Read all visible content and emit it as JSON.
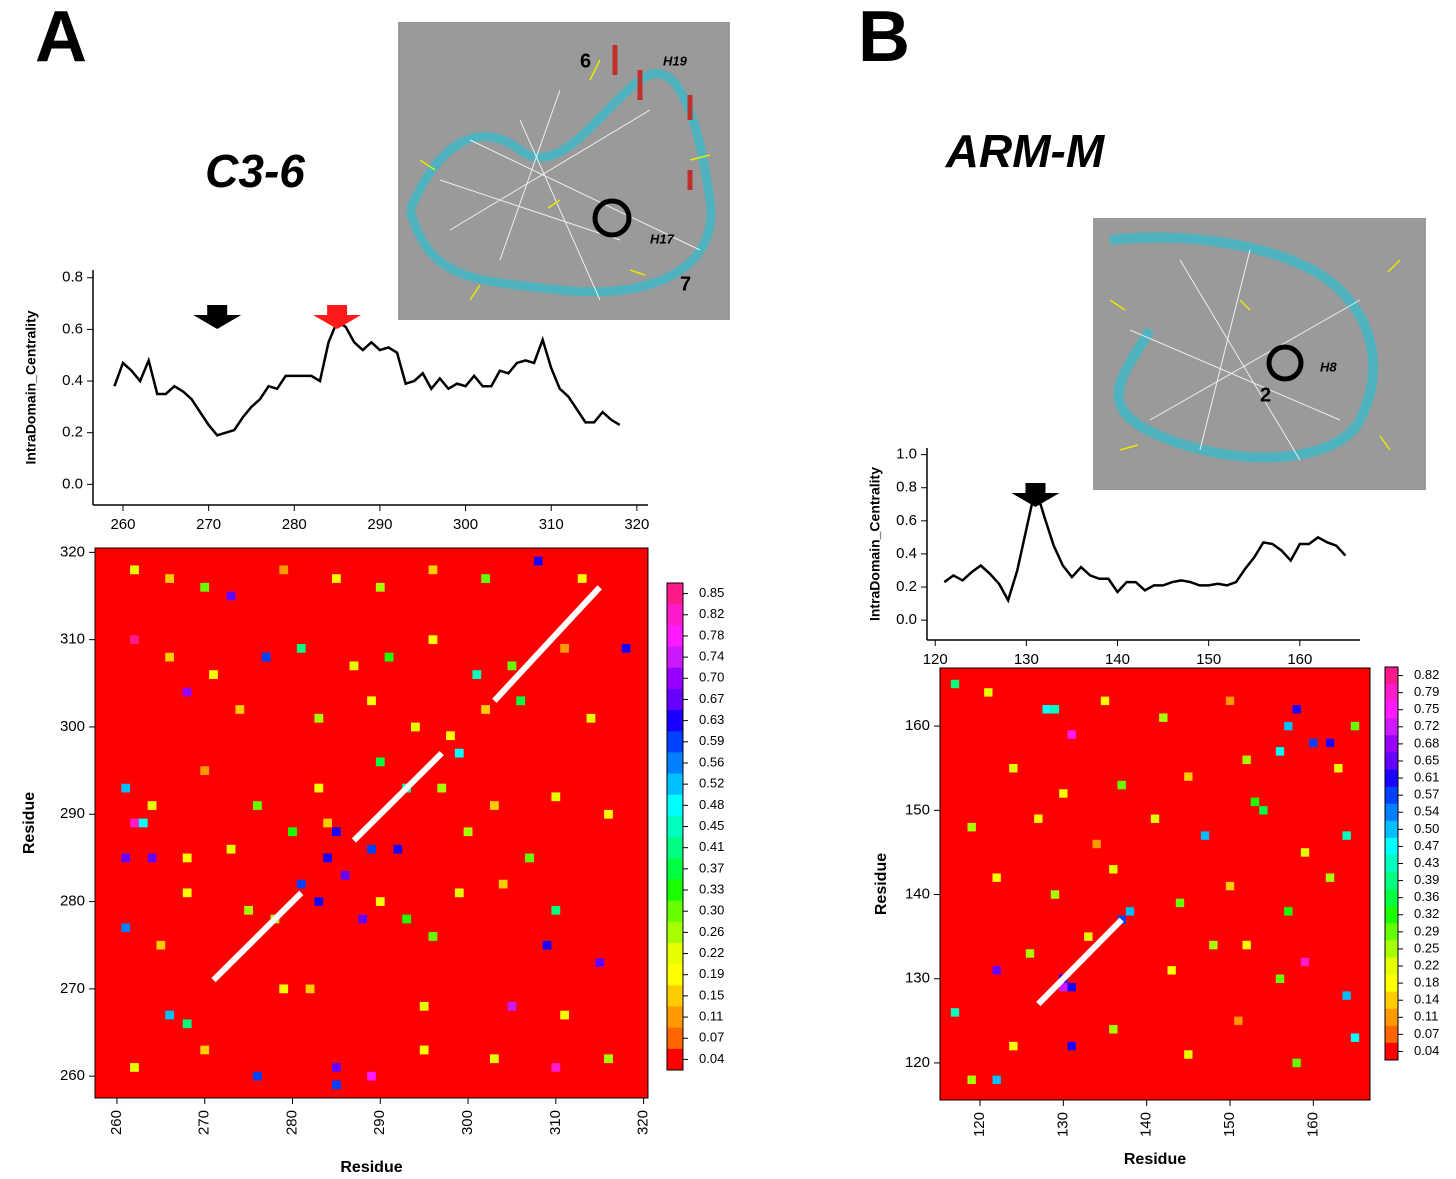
{
  "panels": [
    {
      "label": "A",
      "title": "C3-6",
      "inset_labels": [
        "6",
        "H19",
        "H17",
        "7"
      ]
    },
    {
      "label": "B",
      "title": "ARM-M",
      "inset_labels": [
        "H8",
        "2"
      ]
    }
  ],
  "chart_data": [
    {
      "type": "line",
      "x_label": "",
      "y_label": "IntraDomain_Centrality",
      "color": "#000000",
      "x": [
        259,
        260,
        261,
        262,
        263,
        264,
        265,
        266,
        267,
        268,
        269,
        270,
        271,
        272,
        273,
        274,
        275,
        276,
        277,
        278,
        279,
        280,
        281,
        282,
        283,
        284,
        285,
        286,
        287,
        288,
        289,
        290,
        291,
        292,
        293,
        294,
        295,
        296,
        297,
        298,
        299,
        300,
        301,
        302,
        303,
        304,
        305,
        306,
        307,
        308,
        309,
        310,
        311,
        312,
        313,
        314,
        315,
        316,
        317,
        318
      ],
      "values": [
        0.38,
        0.47,
        0.44,
        0.4,
        0.48,
        0.35,
        0.35,
        0.38,
        0.36,
        0.33,
        0.28,
        0.23,
        0.19,
        0.2,
        0.21,
        0.26,
        0.3,
        0.33,
        0.38,
        0.37,
        0.42,
        0.42,
        0.42,
        0.42,
        0.4,
        0.55,
        0.63,
        0.61,
        0.55,
        0.52,
        0.55,
        0.52,
        0.53,
        0.51,
        0.39,
        0.4,
        0.43,
        0.37,
        0.41,
        0.37,
        0.39,
        0.38,
        0.42,
        0.38,
        0.38,
        0.44,
        0.43,
        0.47,
        0.48,
        0.47,
        0.56,
        0.45,
        0.37,
        0.34,
        0.29,
        0.24,
        0.24,
        0.28,
        0.25,
        0.23
      ],
      "xlim": [
        256.5,
        321.3
      ],
      "xticks": [
        260,
        270,
        280,
        290,
        300,
        310,
        320
      ],
      "ylim": [
        -0.08,
        0.83
      ],
      "yticks": [
        {
          "value": 0,
          "label": "0.0"
        },
        0.2,
        0.4,
        0.6,
        0.8
      ],
      "arrows": [
        {
          "x": 271,
          "color": "#000000"
        },
        {
          "x": 285,
          "color": "#ff1a1a"
        }
      ]
    },
    {
      "type": "heatmap",
      "x_label": "Residue",
      "y_label": "Residue",
      "xlim": [
        257.5,
        320.5
      ],
      "ylim": [
        257.5,
        320.5
      ],
      "xticks": [
        260,
        270,
        280,
        290,
        300,
        310,
        320
      ],
      "yticks": [
        260,
        270,
        280,
        290,
        300,
        310,
        320
      ],
      "cells": [
        [
          262,
          318,
          0.22
        ],
        [
          266,
          317,
          0.15
        ],
        [
          270,
          316,
          0.3
        ],
        [
          273,
          315,
          0.67
        ],
        [
          279,
          318,
          0.11
        ],
        [
          285,
          317,
          0.19
        ],
        [
          290,
          316,
          0.26
        ],
        [
          296,
          318,
          0.15
        ],
        [
          302,
          317,
          0.3
        ],
        [
          308,
          319,
          0.63
        ],
        [
          313,
          317,
          0.19
        ],
        [
          262,
          310,
          0.85
        ],
        [
          266,
          308,
          0.15
        ],
        [
          271,
          306,
          0.19
        ],
        [
          277,
          308,
          0.59
        ],
        [
          281,
          309,
          0.41
        ],
        [
          287,
          307,
          0.22
        ],
        [
          291,
          308,
          0.33
        ],
        [
          296,
          310,
          0.19
        ],
        [
          301,
          306,
          0.45
        ],
        [
          305,
          307,
          0.3
        ],
        [
          311,
          309,
          0.11
        ],
        [
          318,
          309,
          0.63
        ],
        [
          268,
          304,
          0.7
        ],
        [
          274,
          302,
          0.15
        ],
        [
          283,
          301,
          0.26
        ],
        [
          289,
          303,
          0.19
        ],
        [
          294,
          300,
          0.22
        ],
        [
          298,
          299,
          0.19
        ],
        [
          302,
          302,
          0.15
        ],
        [
          306,
          303,
          0.37
        ],
        [
          314,
          301,
          0.22
        ],
        [
          261,
          293,
          0.52
        ],
        [
          264,
          291,
          0.22
        ],
        [
          270,
          295,
          0.11
        ],
        [
          276,
          291,
          0.3
        ],
        [
          283,
          293,
          0.19
        ],
        [
          290,
          296,
          0.37
        ],
        [
          293,
          293,
          0.45
        ],
        [
          297,
          293,
          0.26
        ],
        [
          299,
          297,
          0.48
        ],
        [
          303,
          291,
          0.15
        ],
        [
          310,
          292,
          0.22
        ],
        [
          316,
          290,
          0.19
        ],
        [
          262,
          289,
          0.82
        ],
        [
          263,
          289,
          0.48
        ],
        [
          261,
          285,
          0.67
        ],
        [
          264,
          285,
          0.67
        ],
        [
          268,
          285,
          0.19
        ],
        [
          273,
          286,
          0.22
        ],
        [
          280,
          288,
          0.33
        ],
        [
          284,
          289,
          0.15
        ],
        [
          285,
          288,
          0.63
        ],
        [
          289,
          286,
          0.59
        ],
        [
          292,
          286,
          0.63
        ],
        [
          300,
          288,
          0.26
        ],
        [
          307,
          285,
          0.3
        ],
        [
          268,
          281,
          0.19
        ],
        [
          275,
          279,
          0.26
        ],
        [
          281,
          282,
          0.59
        ],
        [
          283,
          280,
          0.63
        ],
        [
          284,
          285,
          0.63
        ],
        [
          286,
          283,
          0.67
        ],
        [
          290,
          280,
          0.19
        ],
        [
          293,
          278,
          0.33
        ],
        [
          299,
          281,
          0.22
        ],
        [
          304,
          282,
          0.15
        ],
        [
          310,
          279,
          0.41
        ],
        [
          261,
          277,
          0.56
        ],
        [
          265,
          275,
          0.15
        ],
        [
          278,
          278,
          0.26
        ],
        [
          288,
          278,
          0.67
        ],
        [
          296,
          276,
          0.3
        ],
        [
          309,
          275,
          0.63
        ],
        [
          315,
          273,
          0.67
        ],
        [
          266,
          267,
          0.52
        ],
        [
          268,
          266,
          0.41
        ],
        [
          279,
          270,
          0.19
        ],
        [
          282,
          270,
          0.15
        ],
        [
          295,
          268,
          0.22
        ],
        [
          305,
          268,
          0.74
        ],
        [
          311,
          267,
          0.19
        ],
        [
          262,
          261,
          0.22
        ],
        [
          270,
          263,
          0.15
        ],
        [
          276,
          260,
          0.59
        ],
        [
          285,
          261,
          0.67
        ],
        [
          289,
          260,
          0.78
        ],
        [
          295,
          263,
          0.19
        ],
        [
          303,
          262,
          0.22
        ],
        [
          310,
          261,
          0.82
        ],
        [
          316,
          262,
          0.26
        ],
        [
          285,
          259,
          0.59
        ]
      ],
      "highlights": [
        [
          271,
          271,
          281,
          281
        ],
        [
          287,
          287,
          297,
          297
        ],
        [
          303,
          303,
          315,
          316
        ]
      ],
      "colorbar": {
        "ticks": [
          0.85,
          0.82,
          0.78,
          0.74,
          {
            "value": 0.7,
            "label": "0.70"
          },
          0.67,
          0.63,
          0.59,
          0.56,
          0.52,
          0.48,
          0.45,
          0.41,
          0.37,
          0.33,
          {
            "value": 0.3,
            "label": "0.30"
          },
          0.26,
          0.22,
          0.19,
          0.15,
          0.11,
          0.07,
          0.04
        ],
        "colors": [
          "#ff1a8c",
          "#ff1acc",
          "#ff1aff",
          "#cc1aff",
          "#9900ff",
          "#6600ff",
          "#1a00ff",
          "#0040ff",
          "#0080ff",
          "#00bfff",
          "#00ffff",
          "#00ffbf",
          "#00ff80",
          "#00ff40",
          "#1aff00",
          "#66ff00",
          "#a6ff00",
          "#e6ff00",
          "#ffff00",
          "#ffcc00",
          "#ff9900",
          "#ff6600",
          "#ff0000"
        ]
      }
    },
    {
      "type": "line",
      "x_label": "",
      "y_label": "IntraDomain_Centrality",
      "color": "#000000",
      "x": [
        121,
        122,
        123,
        124,
        125,
        126,
        127,
        128,
        129,
        130,
        131,
        132,
        133,
        134,
        135,
        136,
        137,
        138,
        139,
        140,
        141,
        142,
        143,
        144,
        145,
        146,
        147,
        148,
        149,
        150,
        151,
        152,
        153,
        154,
        155,
        156,
        157,
        158,
        159,
        160,
        161,
        162,
        163,
        164,
        165
      ],
      "values": [
        0.23,
        0.27,
        0.24,
        0.29,
        0.33,
        0.28,
        0.22,
        0.12,
        0.3,
        0.55,
        0.8,
        0.62,
        0.45,
        0.33,
        0.26,
        0.32,
        0.27,
        0.25,
        0.25,
        0.17,
        0.23,
        0.23,
        0.18,
        0.21,
        0.21,
        0.23,
        0.24,
        0.23,
        0.21,
        0.21,
        0.22,
        0.21,
        0.23,
        0.31,
        0.38,
        0.47,
        0.46,
        0.42,
        0.36,
        0.46,
        0.46,
        0.5,
        0.47,
        0.45,
        0.39
      ],
      "xlim": [
        119.1,
        166.6
      ],
      "xticks": [
        120,
        130,
        140,
        150,
        160
      ],
      "ylim": [
        -0.12,
        1.04
      ],
      "yticks": [
        {
          "value": 0,
          "label": "0.0"
        },
        0.2,
        0.4,
        0.6,
        0.8,
        {
          "value": 1,
          "label": "1.0"
        }
      ],
      "arrows": [
        {
          "x": 131,
          "color": "#000000"
        }
      ]
    },
    {
      "type": "heatmap",
      "x_label": "Residue",
      "y_label": "Residue",
      "xlim": [
        115.2,
        166.8
      ],
      "ylim": [
        115.6,
        166.9
      ],
      "xticks": [
        120,
        130,
        140,
        150,
        160
      ],
      "yticks": [
        120,
        130,
        140,
        150,
        160
      ],
      "cells": [
        [
          117,
          165,
          0.41
        ],
        [
          121,
          164,
          0.22
        ],
        [
          128,
          162,
          0.45
        ],
        [
          129,
          162,
          0.43
        ],
        [
          131,
          159,
          0.75
        ],
        [
          135,
          163,
          0.18
        ],
        [
          142,
          161,
          0.25
        ],
        [
          150,
          163,
          0.11
        ],
        [
          157,
          160,
          0.5
        ],
        [
          158,
          162,
          0.61
        ],
        [
          160,
          158,
          0.57
        ],
        [
          162,
          158,
          0.61
        ],
        [
          165,
          160,
          0.29
        ],
        [
          124,
          155,
          0.22
        ],
        [
          130,
          152,
          0.18
        ],
        [
          137,
          153,
          0.29
        ],
        [
          145,
          154,
          0.14
        ],
        [
          152,
          156,
          0.25
        ],
        [
          156,
          157,
          0.47
        ],
        [
          163,
          155,
          0.22
        ],
        [
          119,
          148,
          0.25
        ],
        [
          127,
          149,
          0.18
        ],
        [
          134,
          146,
          0.11
        ],
        [
          141,
          149,
          0.22
        ],
        [
          147,
          147,
          0.5
        ],
        [
          153,
          151,
          0.32
        ],
        [
          154,
          150,
          0.36
        ],
        [
          159,
          145,
          0.22
        ],
        [
          164,
          147,
          0.43
        ],
        [
          122,
          142,
          0.18
        ],
        [
          129,
          140,
          0.25
        ],
        [
          136,
          143,
          0.22
        ],
        [
          144,
          139,
          0.29
        ],
        [
          150,
          141,
          0.14
        ],
        [
          157,
          138,
          0.32
        ],
        [
          162,
          142,
          0.25
        ],
        [
          122,
          131,
          0.65
        ],
        [
          126,
          133,
          0.25
        ],
        [
          130,
          130,
          0.61
        ],
        [
          130,
          129,
          0.72
        ],
        [
          131,
          129,
          0.61
        ],
        [
          137,
          137,
          0.57
        ],
        [
          138,
          138,
          0.5
        ],
        [
          133,
          135,
          0.22
        ],
        [
          143,
          131,
          0.18
        ],
        [
          148,
          134,
          0.25
        ],
        [
          152,
          134,
          0.18
        ],
        [
          156,
          130,
          0.29
        ],
        [
          159,
          132,
          0.79
        ],
        [
          164,
          128,
          0.5
        ],
        [
          117,
          126,
          0.43
        ],
        [
          124,
          122,
          0.18
        ],
        [
          131,
          122,
          0.61
        ],
        [
          136,
          124,
          0.25
        ],
        [
          145,
          121,
          0.22
        ],
        [
          151,
          125,
          0.11
        ],
        [
          158,
          120,
          0.29
        ],
        [
          165,
          123,
          0.47
        ],
        [
          119,
          118,
          0.25
        ],
        [
          122,
          118,
          0.5
        ]
      ],
      "highlights": [
        [
          127,
          127,
          137,
          137
        ]
      ],
      "colorbar": {
        "ticks": [
          0.82,
          0.79,
          0.75,
          0.72,
          0.68,
          0.65,
          0.61,
          0.57,
          0.54,
          {
            "value": 0.5,
            "label": "0.50"
          },
          0.47,
          0.43,
          0.39,
          0.36,
          0.32,
          0.29,
          0.25,
          0.22,
          0.18,
          0.14,
          0.11,
          0.07,
          0.04
        ],
        "colors": [
          "#ff1a8c",
          "#ff1acc",
          "#ff1aff",
          "#cc1aff",
          "#9900ff",
          "#6600ff",
          "#1a00ff",
          "#0040ff",
          "#0080ff",
          "#00bfff",
          "#00ffff",
          "#00ffbf",
          "#00ff80",
          "#00ff40",
          "#1aff00",
          "#66ff00",
          "#a6ff00",
          "#e6ff00",
          "#ffff00",
          "#ffcc00",
          "#ff9900",
          "#ff6600",
          "#ff0000"
        ]
      }
    }
  ]
}
